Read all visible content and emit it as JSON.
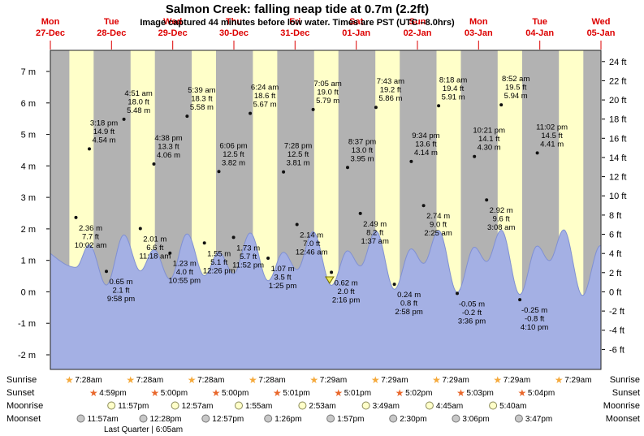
{
  "title": "Salmon Creek: falling  neap tide at 0.7m (2.2ft)",
  "subtitle": "Image captured 44 minutes before low water. Times are PST (UTC –8.0hrs)",
  "chart_data": {
    "type": "area",
    "title": "Salmon Creek: falling  neap tide at 0.7m (2.2ft)",
    "days": [
      {
        "name": "Mon",
        "date": "27-Dec"
      },
      {
        "name": "Tue",
        "date": "28-Dec"
      },
      {
        "name": "Wed",
        "date": "29-Dec"
      },
      {
        "name": "Thu",
        "date": "30-Dec"
      },
      {
        "name": "Fri",
        "date": "31-Dec"
      },
      {
        "name": "Sat",
        "date": "01-Jan"
      },
      {
        "name": "Sun",
        "date": "02-Jan"
      },
      {
        "name": "Mon",
        "date": "03-Jan"
      },
      {
        "name": "Tue",
        "date": "04-Jan"
      },
      {
        "name": "Wed",
        "date": "05-Jan"
      }
    ],
    "y_axis_left": {
      "unit": "m",
      "ticks": [
        7,
        6,
        5,
        4,
        3,
        2,
        1,
        0,
        -1,
        -2
      ]
    },
    "y_axis_right": {
      "unit": "ft",
      "ticks": [
        24,
        22,
        20,
        18,
        16,
        14,
        12,
        10,
        8,
        6,
        4,
        2,
        0,
        -2,
        -4,
        -6
      ]
    },
    "tide_events": [
      {
        "day": 0,
        "time": "10:02 am",
        "type": "low",
        "m": 2.36,
        "ft": 7.7
      },
      {
        "day": 0,
        "time": "3:18 pm",
        "type": "high",
        "m": 4.54,
        "ft": 14.9
      },
      {
        "day": 0,
        "time": "9:58 pm",
        "type": "low",
        "m": 0.65,
        "ft": 2.1
      },
      {
        "day": 1,
        "time": "4:51 am",
        "type": "high",
        "m": 5.48,
        "ft": 18.0
      },
      {
        "day": 1,
        "time": "11:18 am",
        "type": "low",
        "m": 2.01,
        "ft": 6.6
      },
      {
        "day": 1,
        "time": "4:38 pm",
        "type": "high",
        "m": 4.06,
        "ft": 13.3
      },
      {
        "day": 1,
        "time": "10:55 pm",
        "type": "low",
        "m": 1.23,
        "ft": 4.0
      },
      {
        "day": 2,
        "time": "5:39 am",
        "type": "high",
        "m": 5.58,
        "ft": 18.3
      },
      {
        "day": 2,
        "time": "12:26 pm",
        "type": "low",
        "m": 1.55,
        "ft": 5.1
      },
      {
        "day": 2,
        "time": "6:06 pm",
        "type": "high",
        "m": 3.82,
        "ft": 12.5
      },
      {
        "day": 2,
        "time": "11:52 pm",
        "type": "low",
        "m": 1.73,
        "ft": 5.7
      },
      {
        "day": 3,
        "time": "6:24 am",
        "type": "high",
        "m": 5.67,
        "ft": 18.6
      },
      {
        "day": 3,
        "time": "1:25 pm",
        "type": "low",
        "m": 1.07,
        "ft": 3.5
      },
      {
        "day": 3,
        "time": "7:28 pm",
        "type": "high",
        "m": 3.81,
        "ft": 12.5
      },
      {
        "day": 4,
        "time": "12:46 am",
        "type": "low",
        "m": 2.14,
        "ft": 7.0
      },
      {
        "day": 4,
        "time": "7:05 am",
        "type": "high",
        "m": 5.79,
        "ft": 19.0
      },
      {
        "day": 4,
        "time": "2:16 pm",
        "type": "low",
        "m": 0.62,
        "ft": 2.0
      },
      {
        "day": 4,
        "time": "8:37 pm",
        "type": "high",
        "m": 3.95,
        "ft": 13.0
      },
      {
        "day": 5,
        "time": "1:37 am",
        "type": "low",
        "m": 2.49,
        "ft": 8.2
      },
      {
        "day": 5,
        "time": "7:43 am",
        "type": "high",
        "m": 5.86,
        "ft": 19.2
      },
      {
        "day": 5,
        "time": "2:58 pm",
        "type": "low",
        "m": 0.24,
        "ft": 0.8
      },
      {
        "day": 5,
        "time": "9:34 pm",
        "type": "high",
        "m": 4.14,
        "ft": 13.6
      },
      {
        "day": 6,
        "time": "2:25 am",
        "type": "low",
        "m": 2.74,
        "ft": 9.0
      },
      {
        "day": 6,
        "time": "8:18 am",
        "type": "high",
        "m": 5.91,
        "ft": 19.4
      },
      {
        "day": 6,
        "time": "3:36 pm",
        "type": "low",
        "m": -0.05,
        "ft": -0.2
      },
      {
        "day": 6,
        "time": "10:21 pm",
        "type": "high",
        "m": 4.3,
        "ft": 14.1
      },
      {
        "day": 7,
        "time": "3:08 am",
        "type": "low",
        "m": 2.92,
        "ft": 9.6
      },
      {
        "day": 7,
        "time": "8:52 am",
        "type": "high",
        "m": 5.94,
        "ft": 19.5
      },
      {
        "day": 7,
        "time": "4:10 pm",
        "type": "low",
        "m": -0.25,
        "ft": -0.8
      },
      {
        "day": 7,
        "time": "11:02 pm",
        "type": "high",
        "m": 4.41,
        "ft": 14.5
      }
    ],
    "current_marker": {
      "level_m": 0.7,
      "level_ft": 2.2,
      "day_fraction": 4.565
    },
    "sun_moon": {
      "sunrise": [
        {
          "day": 0,
          "time": "7:28am"
        },
        {
          "day": 1,
          "time": "7:28am"
        },
        {
          "day": 2,
          "time": "7:28am"
        },
        {
          "day": 3,
          "time": "7:28am"
        },
        {
          "day": 4,
          "time": "7:29am"
        },
        {
          "day": 5,
          "time": "7:29am"
        },
        {
          "day": 6,
          "time": "7:29am"
        },
        {
          "day": 7,
          "time": "7:29am"
        },
        {
          "day": 8,
          "time": "7:29am"
        }
      ],
      "sunset": [
        {
          "day": 0,
          "time": "4:59pm"
        },
        {
          "day": 1,
          "time": "5:00pm"
        },
        {
          "day": 2,
          "time": "5:00pm"
        },
        {
          "day": 3,
          "time": "5:01pm"
        },
        {
          "day": 4,
          "time": "5:01pm"
        },
        {
          "day": 5,
          "time": "5:02pm"
        },
        {
          "day": 6,
          "time": "5:03pm"
        },
        {
          "day": 7,
          "time": "5:04pm"
        }
      ],
      "moonrise": [
        {
          "day": 0,
          "time": "11:57pm"
        },
        {
          "day": 2,
          "time": "12:57am"
        },
        {
          "day": 3,
          "time": "1:55am"
        },
        {
          "day": 4,
          "time": "2:53am"
        },
        {
          "day": 5,
          "time": "3:49am"
        },
        {
          "day": 6,
          "time": "4:45am"
        },
        {
          "day": 7,
          "time": "5:40am"
        }
      ],
      "moonset": [
        {
          "day": 0,
          "time": "11:57am"
        },
        {
          "day": 1,
          "time": "12:28pm"
        },
        {
          "day": 2,
          "time": "12:57pm"
        },
        {
          "day": 3,
          "time": "1:26pm"
        },
        {
          "day": 4,
          "time": "1:57pm"
        },
        {
          "day": 5,
          "time": "2:30pm"
        },
        {
          "day": 6,
          "time": "3:06pm"
        },
        {
          "day": 7,
          "time": "3:47pm"
        }
      ],
      "phase_note": "Last Quarter | 6:05am"
    },
    "row_labels": {
      "sunrise": "Sunrise",
      "sunset": "Sunset",
      "moonrise": "Moonrise",
      "moonset": "Moonset"
    }
  },
  "colors": {
    "night_band": "#b2b2b2",
    "day_band": "#ffffc9",
    "curve_fill": "#a4b0e4",
    "curve_edge": "#8090d2",
    "day_label": "#dd0000",
    "axis_tick": "#000000",
    "sunrise_icon": "#f5a93b",
    "sunset_icon": "#e9672b",
    "moonrise_fill": "#ffffc9",
    "moonrise_edge": "#8a8a5a",
    "moonset_fill": "#c8c8c8",
    "moonset_edge": "#777777",
    "marker_fill": "#ece85a",
    "marker_edge": "#7a7000"
  }
}
